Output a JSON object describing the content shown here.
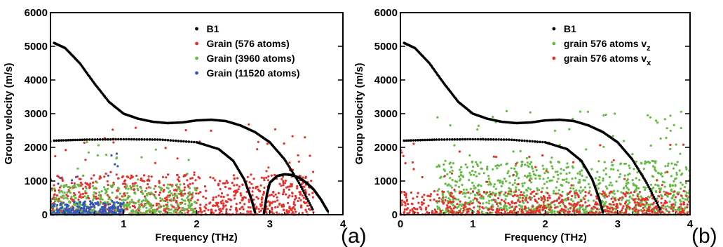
{
  "chart_data": [
    {
      "type": "scatter",
      "panel_label": "(a)",
      "xlabel": "Frequency (THz)",
      "ylabel": "Group velocity (m/s)",
      "xlim": [
        0,
        4
      ],
      "ylim": [
        0,
        6000
      ],
      "x_ticks": [
        "1",
        "2",
        "3",
        "4"
      ],
      "y_ticks": [
        "0",
        "1000",
        "2000",
        "3000",
        "4000",
        "5000",
        "6000"
      ],
      "legend_position": "top-right",
      "series": [
        {
          "name": "B1",
          "color": "#000000",
          "branches": [
            {
              "x": [
                0.05,
                0.2,
                0.4,
                0.6,
                0.8,
                1.0,
                1.2,
                1.4,
                1.6,
                1.8,
                2.0,
                2.2,
                2.4,
                2.6,
                2.8,
                3.0,
                3.2,
                3.4,
                3.6
              ],
              "y": [
                5100,
                4950,
                4500,
                3900,
                3350,
                3000,
                2850,
                2760,
                2720,
                2740,
                2800,
                2820,
                2780,
                2650,
                2450,
                2150,
                1650,
                950,
                100
              ]
            },
            {
              "x": [
                0.05,
                0.5,
                1.0,
                1.5,
                2.0,
                2.3,
                2.5,
                2.65,
                2.75,
                2.8
              ],
              "y": [
                2200,
                2230,
                2240,
                2230,
                2150,
                1950,
                1600,
                1050,
                450,
                50
              ]
            },
            {
              "x": [
                2.92,
                2.96,
                3.0,
                3.1,
                3.2,
                3.3,
                3.4,
                3.5,
                3.6,
                3.7,
                3.8
              ],
              "y": [
                50,
                600,
                950,
                1150,
                1200,
                1180,
                1100,
                950,
                750,
                450,
                80
              ]
            }
          ]
        },
        {
          "name": "Grain (576 atoms)",
          "color": "#e8302b",
          "note_band": {
            "x_range": [
              0,
              3.6
            ],
            "y_typical": [
              0,
              1200
            ]
          }
        },
        {
          "name": "Grain (3960 atoms)",
          "color": "#66bb44",
          "note_band": {
            "x_range": [
              0,
              2.0
            ],
            "y_typical": [
              0,
              900
            ]
          }
        },
        {
          "name": "Grain (11520 atoms)",
          "color": "#3356b8",
          "note_band": {
            "x_range": [
              0,
              1.0
            ],
            "y_typical": [
              0,
              400
            ]
          }
        }
      ]
    },
    {
      "type": "scatter",
      "panel_label": "(b)",
      "xlabel": "Frequency (THz)",
      "ylabel": "Group velocity (m/s)",
      "xlim": [
        0,
        4
      ],
      "ylim": [
        0,
        6000
      ],
      "x_ticks": [
        "0",
        "1",
        "2",
        "3",
        "4"
      ],
      "y_ticks": [
        "0",
        "1000",
        "2000",
        "3000",
        "4000",
        "5000",
        "6000"
      ],
      "legend_position": "top-right",
      "series": [
        {
          "name": "B1",
          "color": "#000000",
          "branches": [
            {
              "x": [
                0.05,
                0.2,
                0.4,
                0.6,
                0.8,
                1.0,
                1.2,
                1.4,
                1.6,
                1.8,
                2.0,
                2.2,
                2.4,
                2.6,
                2.8,
                3.0,
                3.2,
                3.4,
                3.6
              ],
              "y": [
                5100,
                4950,
                4500,
                3900,
                3350,
                3000,
                2850,
                2760,
                2720,
                2740,
                2800,
                2820,
                2780,
                2650,
                2450,
                2150,
                1650,
                950,
                100
              ]
            },
            {
              "x": [
                0.05,
                0.5,
                1.0,
                1.5,
                2.0,
                2.3,
                2.5,
                2.65,
                2.75,
                2.8
              ],
              "y": [
                2200,
                2230,
                2240,
                2230,
                2150,
                1950,
                1600,
                1050,
                450,
                50
              ]
            }
          ]
        },
        {
          "name": "grain 576 atoms v",
          "subscript": "z",
          "color": "#66bb44",
          "note_band": {
            "x_range": [
              0.5,
              4.0
            ],
            "y_typical": [
              0,
              1600
            ]
          }
        },
        {
          "name": "grain 576 atoms v",
          "subscript": "x",
          "color": "#e8302b",
          "note_band": {
            "x_range": [
              0,
              4.0
            ],
            "y_typical": [
              0,
              700
            ]
          }
        }
      ]
    }
  ]
}
